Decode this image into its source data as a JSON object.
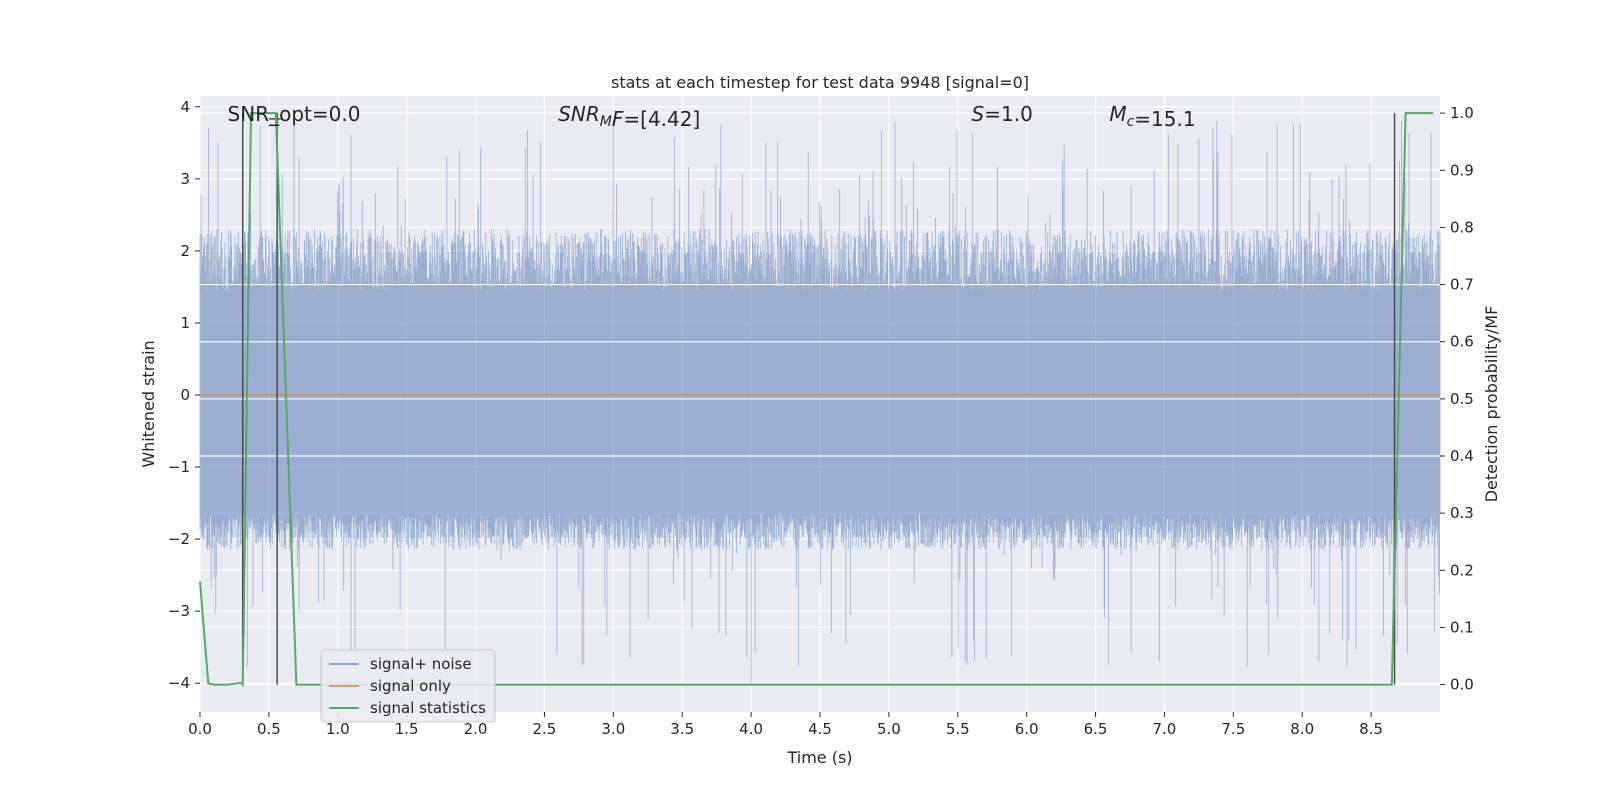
{
  "chart_data": {
    "type": "line",
    "title": "stats at each timestep for test data 9948 [signal=0]",
    "xlabel": "Time (s)",
    "ylabel": "Whitened strain",
    "y2label": "Detection probability/MF",
    "xlim": [
      0.0,
      9.0
    ],
    "ylim": [
      -4.4,
      4.15
    ],
    "y2lim": [
      -0.048,
      1.03
    ],
    "xticks": [
      "0.0",
      "0.5",
      "1.0",
      "1.5",
      "2.0",
      "2.5",
      "3.0",
      "3.5",
      "4.0",
      "4.5",
      "5.0",
      "5.5",
      "6.0",
      "6.5",
      "7.0",
      "7.5",
      "8.0",
      "8.5"
    ],
    "xtick_values": [
      0,
      0.5,
      1,
      1.5,
      2,
      2.5,
      3,
      3.5,
      4,
      4.5,
      5,
      5.5,
      6,
      6.5,
      7,
      7.5,
      8,
      8.5
    ],
    "yticks": [
      "−4",
      "−3",
      "−2",
      "−1",
      "0",
      "1",
      "2",
      "3",
      "4"
    ],
    "ytick_values": [
      -4,
      -3,
      -2,
      -1,
      0,
      1,
      2,
      3,
      4
    ],
    "y2ticks": [
      "0.0",
      "0.1",
      "0.2",
      "0.3",
      "0.4",
      "0.5",
      "0.6",
      "0.7",
      "0.8",
      "0.9",
      "1.0"
    ],
    "y2tick_values": [
      0,
      0.1,
      0.2,
      0.3,
      0.4,
      0.5,
      0.6,
      0.7,
      0.8,
      0.9,
      1.0
    ],
    "annotations": [
      {
        "parts": [
          {
            "t": "SNR_opt=0.0",
            "i": false
          }
        ]
      },
      {
        "parts": [
          {
            "t": "SNR",
            "i": true
          },
          {
            "t": "M",
            "i": true,
            "sub": true
          },
          {
            "t": "F",
            "i": true
          },
          {
            "t": "=[4.42]",
            "i": false
          }
        ]
      },
      {
        "parts": [
          {
            "t": "S",
            "i": true
          },
          {
            "t": "=1.0",
            "i": false
          }
        ]
      },
      {
        "parts": [
          {
            "t": "M",
            "i": true
          },
          {
            "t": "c",
            "i": true,
            "sub": true
          },
          {
            "t": "=15.1",
            "i": false
          }
        ]
      }
    ],
    "series": [
      {
        "name": "signal+ noise",
        "color": "#4c72b0",
        "envelope": {
          "typical_band": [
            -1.65,
            1.45
          ],
          "peak_max": 3.8,
          "peak_min": -4.0
        }
      },
      {
        "name": "signal only",
        "color": "#dd8452",
        "values_constant": 0.0
      },
      {
        "name": "signal statistics",
        "color": "#55a868",
        "axis": "right",
        "x": [
          0.0,
          0.06,
          0.1,
          0.2,
          0.3,
          0.31,
          0.37,
          0.55,
          0.7,
          8.6,
          8.65,
          8.75,
          8.95
        ],
        "y": [
          0.18,
          0.002,
          0.0,
          0.0,
          0.003,
          0.0,
          1.0,
          1.0,
          0.0,
          0.0,
          0.0,
          1.0,
          1.0
        ]
      }
    ],
    "vertical_markers": [
      {
        "x": 0.31,
        "color": "#444444"
      },
      {
        "x": 0.56,
        "color": "#444444"
      },
      {
        "x": 8.67,
        "color": "#444444"
      }
    ],
    "legend_position": "lower-left",
    "grid": true
  }
}
